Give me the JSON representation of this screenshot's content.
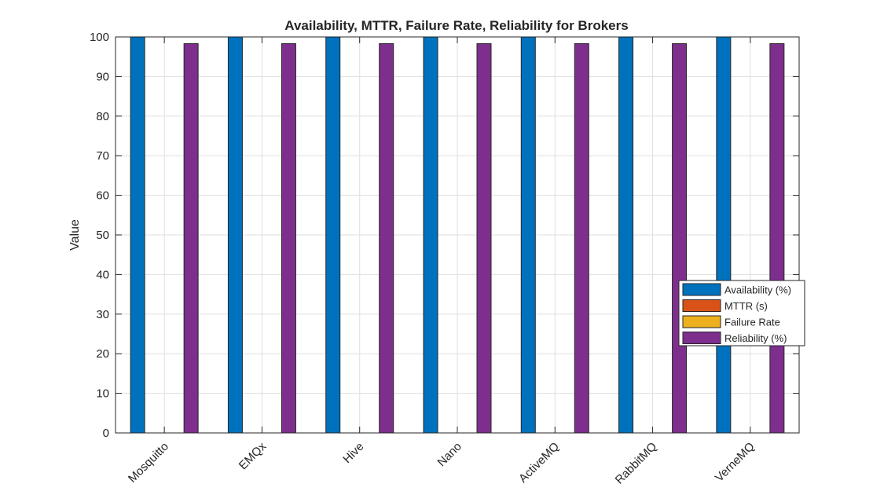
{
  "chart_data": {
    "type": "bar",
    "title": "Availability, MTTR, Failure Rate, Reliability for Brokers",
    "xlabel": "",
    "ylabel": "Value",
    "ylim": [
      0,
      100
    ],
    "yticks": [
      "0",
      "10",
      "20",
      "30",
      "40",
      "50",
      "60",
      "70",
      "80",
      "90",
      "100"
    ],
    "grid": true,
    "legend_position": "right",
    "categories": [
      "Mosquitto",
      "EMQx",
      "Hive",
      "Nano",
      "ActiveMQ",
      "RabbitMQ",
      "VerneMQ"
    ],
    "series": [
      {
        "name": "Availability (%)",
        "color": "#0072BD",
        "values": [
          99.99,
          99.99,
          99.99,
          99.99,
          99.99,
          99.99,
          99.99
        ]
      },
      {
        "name": "MTTR (s)",
        "color": "#D95319",
        "values": [
          0,
          0,
          0,
          0,
          0,
          0,
          0
        ]
      },
      {
        "name": "Failure Rate",
        "color": "#EDB120",
        "values": [
          0,
          0,
          0,
          0,
          0,
          0,
          0
        ]
      },
      {
        "name": "Reliability (%)",
        "color": "#7E2F8E",
        "values": [
          98.3,
          98.3,
          98.3,
          98.3,
          98.3,
          98.3,
          98.3
        ]
      }
    ]
  }
}
